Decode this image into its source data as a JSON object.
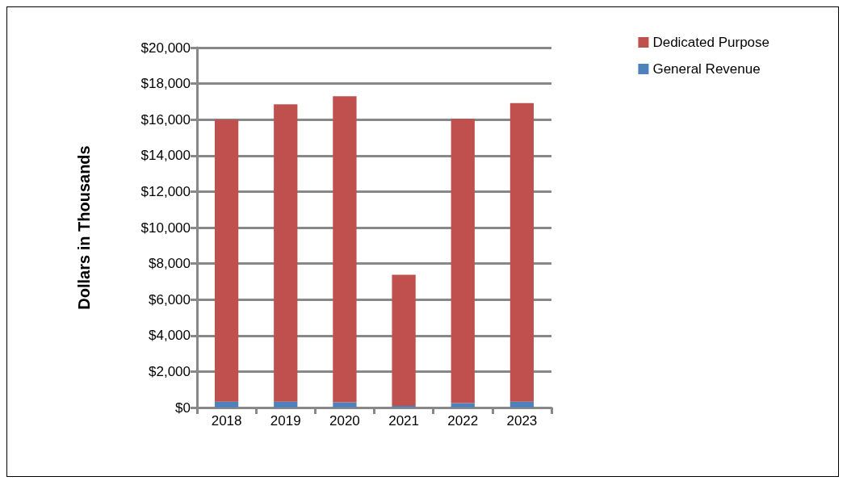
{
  "chart_data": {
    "type": "bar",
    "stacked": true,
    "ylabel": "Dollars in Thousands",
    "categories": [
      "2018",
      "2019",
      "2020",
      "2021",
      "2022",
      "2023"
    ],
    "series": [
      {
        "name": "General Revenue",
        "color": "#4f81bd",
        "values": [
          330,
          330,
          290,
          90,
          245,
          330
        ]
      },
      {
        "name": "Dedicated Purpose",
        "color": "#c0504d",
        "values": [
          15670,
          16520,
          17010,
          7290,
          15800,
          16590
        ]
      }
    ],
    "ylim": [
      0,
      20000
    ],
    "yticks": [
      {
        "value": 0,
        "label": "$0"
      },
      {
        "value": 2000,
        "label": "$2,000"
      },
      {
        "value": 4000,
        "label": "$4,000"
      },
      {
        "value": 6000,
        "label": "$6,000"
      },
      {
        "value": 8000,
        "label": "$8,000"
      },
      {
        "value": 10000,
        "label": "$10,000"
      },
      {
        "value": 12000,
        "label": "$12,000"
      },
      {
        "value": 14000,
        "label": "$14,000"
      },
      {
        "value": 16000,
        "label": "$16,000"
      },
      {
        "value": 18000,
        "label": "$18,000"
      },
      {
        "value": 20000,
        "label": "$20,000"
      }
    ],
    "grid": "y",
    "legend": "top right"
  }
}
